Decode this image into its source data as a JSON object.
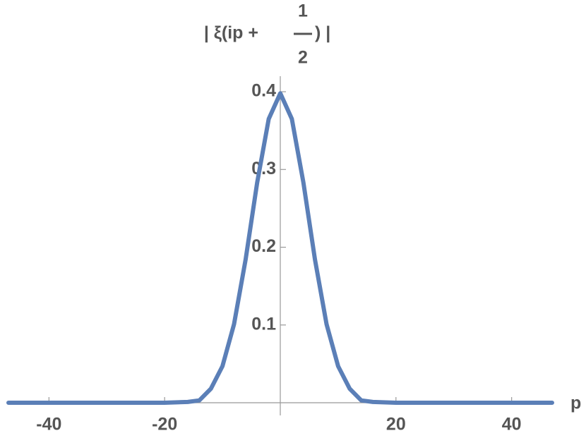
{
  "chart_data": {
    "type": "line",
    "y_label": {
      "prefix": "| ξ(ip +",
      "numerator": "1",
      "denominator": "2",
      "suffix": ") |"
    },
    "x_label": "p",
    "x": [
      -47,
      -40,
      -30,
      -20,
      -16,
      -14,
      -12,
      -10,
      -8,
      -6,
      -4,
      -2,
      0,
      2,
      4,
      6,
      8,
      10,
      12,
      14,
      16,
      20,
      30,
      40,
      47
    ],
    "series": [
      {
        "color": "#5b7fb7",
        "values": [
          0,
          0,
          0,
          0,
          0.001,
          0.003,
          0.018,
          0.047,
          0.101,
          0.184,
          0.283,
          0.365,
          0.398,
          0.365,
          0.283,
          0.184,
          0.101,
          0.047,
          0.018,
          0.003,
          0.001,
          0,
          0,
          0,
          0
        ]
      }
    ],
    "xlim": [
      -47,
      47
    ],
    "ylim": [
      0,
      0.42
    ],
    "xticks": [
      -40,
      -20,
      20,
      40
    ],
    "yticks": [
      0.1,
      0.2,
      0.3,
      0.4
    ]
  }
}
